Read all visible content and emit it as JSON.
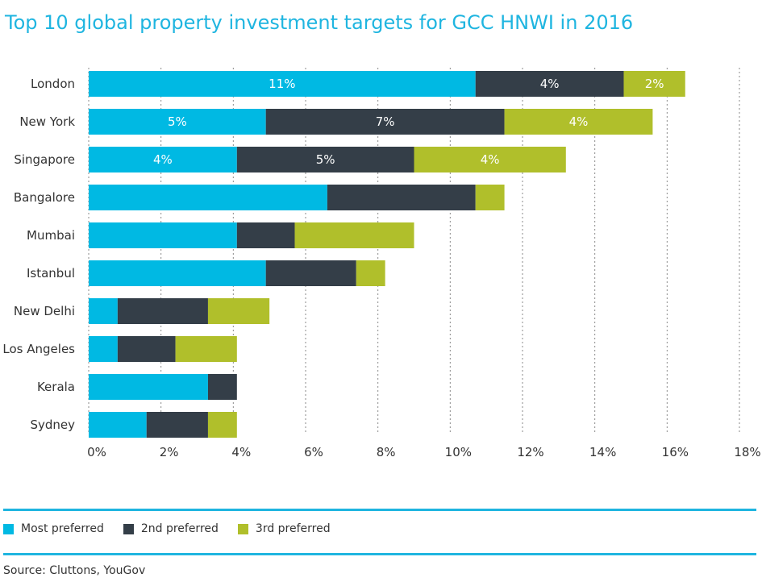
{
  "chart_data": {
    "type": "bar",
    "orientation": "horizontal",
    "stacked": true,
    "title": "Top 10 global property investment targets for GCC HNWI in 2016",
    "categories": [
      "London",
      "New York",
      "Singapore",
      "Bangalore",
      "Mumbai",
      "Istanbul",
      "New Delhi",
      "Los Angeles",
      "Kerala",
      "Sydney"
    ],
    "series": [
      {
        "name": "Most preferred",
        "color": "#00b9e3",
        "values": [
          10.7,
          4.9,
          4.1,
          6.6,
          4.1,
          4.9,
          0.8,
          0.8,
          3.3,
          1.6
        ],
        "labels": [
          "11%",
          "5%",
          "4%",
          "",
          "",
          "",
          "",
          "",
          "",
          ""
        ]
      },
      {
        "name": "2nd preferred",
        "color": "#343e48",
        "values": [
          4.1,
          6.6,
          4.9,
          4.1,
          1.6,
          2.5,
          2.5,
          1.6,
          0.8,
          1.7
        ],
        "labels": [
          "4%",
          "7%",
          "5%",
          "",
          "",
          "",
          "",
          "",
          "",
          ""
        ]
      },
      {
        "name": "3rd preferred",
        "color": "#b0bf2b",
        "values": [
          1.7,
          4.1,
          4.2,
          0.8,
          3.3,
          0.8,
          1.7,
          1.7,
          0,
          0.8
        ],
        "labels": [
          "2%",
          "4%",
          "4%",
          "",
          "",
          "",
          "",
          "",
          "",
          ""
        ]
      }
    ],
    "xlim": [
      0,
      18
    ],
    "xticks": [
      0,
      2,
      4,
      6,
      8,
      10,
      12,
      14,
      16,
      18
    ],
    "xtick_labels": [
      "0%",
      "2%",
      "4%",
      "6%",
      "8%",
      "10%",
      "12%",
      "14%",
      "16%",
      "18%"
    ],
    "grid": "vertical dotted",
    "legend_position": "bottom-left"
  },
  "source": "Source: Cluttons, YouGov"
}
